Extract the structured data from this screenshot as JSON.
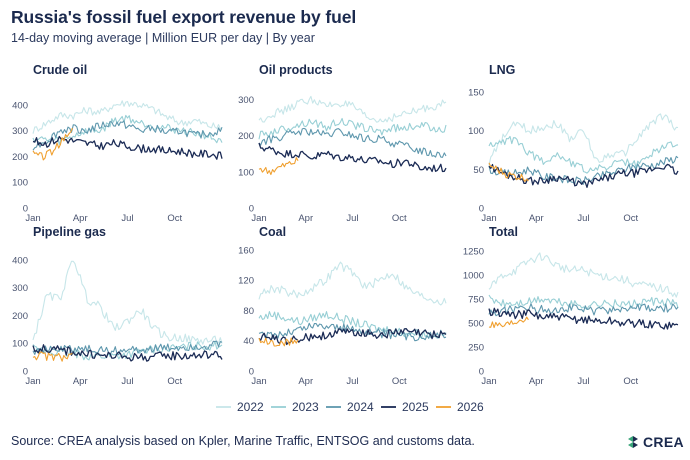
{
  "title": "Russia's fossil fuel export revenue by fuel",
  "subtitle": "14-day moving average | Million EUR per day | By year",
  "source": "Source: CREA analysis based on Kpler, Marine Traffic, ENTSOG and customs data.",
  "logo": {
    "text": "CREA",
    "icon": "crea-leaf-icon"
  },
  "colors": {
    "2022": "#c7e6e9",
    "2023": "#98cfd5",
    "2024": "#5e97ad",
    "2025": "#1b2b55",
    "2026": "#f0a030"
  },
  "chart_data": {
    "type": "line",
    "x_tick_labels": [
      "Jan",
      "Apr",
      "Jul",
      "Oct"
    ],
    "legend": {
      "placement": "bottom",
      "entries": [
        "2022",
        "2023",
        "2024",
        "2025",
        "2026"
      ]
    },
    "grid": false,
    "panels": [
      {
        "title": "Crude oil",
        "ylim": [
          0,
          450
        ],
        "y_ticks": [
          0,
          100,
          200,
          300,
          400
        ],
        "series": [
          {
            "name": "2022",
            "values": [
              300,
              330,
              360,
              360,
              380,
              370,
              400,
              410,
              400,
              380,
              350,
              330,
              340,
              320,
              310
            ]
          },
          {
            "name": "2023",
            "values": [
              270,
              265,
              260,
              280,
              300,
              300,
              340,
              350,
              330,
              320,
              310,
              300,
              290,
              280,
              250
            ]
          },
          {
            "name": "2024",
            "values": [
              240,
              260,
              300,
              310,
              300,
              320,
              330,
              320,
              300,
              310,
              290,
              300,
              280,
              290,
              300
            ]
          },
          {
            "name": "2025",
            "values": [
              260,
              250,
              270,
              260,
              250,
              240,
              250,
              240,
              230,
              230,
              220,
              220,
              210,
              210,
              200
            ]
          },
          {
            "name": "2026",
            "values": [
              210,
              200,
              220,
              260,
              300
            ]
          }
        ]
      },
      {
        "title": "Oil products",
        "ylim": [
          0,
          320
        ],
        "y_ticks": [
          0,
          100,
          200,
          300
        ],
        "series": [
          {
            "name": "2022",
            "values": [
              240,
              260,
              270,
              290,
              300,
              280,
              290,
              280,
              250,
              240,
              250,
              260,
              270,
              280,
              290
            ]
          },
          {
            "name": "2023",
            "values": [
              200,
              210,
              220,
              230,
              240,
              220,
              240,
              230,
              220,
              210,
              220,
              220,
              230,
              220,
              220
            ]
          },
          {
            "name": "2024",
            "values": [
              180,
              190,
              200,
              210,
              210,
              200,
              210,
              200,
              190,
              190,
              180,
              170,
              160,
              150,
              150
            ]
          },
          {
            "name": "2025",
            "values": [
              170,
              160,
              150,
              150,
              140,
              150,
              140,
              140,
              130,
              130,
              120,
              130,
              110,
              110,
              110
            ]
          },
          {
            "name": "2026",
            "values": [
              110,
              100,
              110,
              120,
              130
            ]
          }
        ]
      },
      {
        "title": "LNG",
        "ylim": [
          0,
          150
        ],
        "y_ticks": [
          0,
          50,
          100,
          150
        ],
        "series": [
          {
            "name": "2022",
            "values": [
              60,
              90,
              110,
              100,
              105,
              110,
              90,
              100,
              60,
              70,
              70,
              90,
              110,
              120,
              100
            ]
          },
          {
            "name": "2023",
            "values": [
              80,
              85,
              90,
              70,
              60,
              70,
              60,
              50,
              50,
              55,
              60,
              55,
              70,
              80,
              85
            ]
          },
          {
            "name": "2024",
            "values": [
              50,
              45,
              45,
              50,
              40,
              40,
              35,
              35,
              40,
              45,
              50,
              55,
              55,
              60,
              65
            ]
          },
          {
            "name": "2025",
            "values": [
              55,
              45,
              40,
              35,
              35,
              40,
              35,
              30,
              35,
              40,
              45,
              45,
              50,
              55,
              45
            ]
          },
          {
            "name": "2026",
            "values": [
              55,
              48,
              42,
              40,
              38
            ]
          }
        ]
      },
      {
        "title": "Pipeline gas",
        "ylim": [
          0,
          450
        ],
        "y_ticks": [
          0,
          100,
          200,
          300,
          400
        ],
        "series": [
          {
            "name": "2022",
            "values": [
              110,
              270,
              260,
              410,
              260,
              230,
              150,
              180,
              220,
              150,
              120,
              120,
              110,
              110,
              110
            ]
          },
          {
            "name": "2023",
            "values": [
              80,
              70,
              65,
              60,
              55,
              55,
              55,
              60,
              70,
              80,
              80,
              85,
              90,
              90,
              95
            ]
          },
          {
            "name": "2024",
            "values": [
              75,
              78,
              80,
              82,
              78,
              75,
              72,
              75,
              78,
              80,
              82,
              85,
              88,
              90,
              95
            ]
          },
          {
            "name": "2025",
            "values": [
              80,
              80,
              75,
              70,
              60,
              55,
              55,
              50,
              50,
              50,
              55,
              55,
              55,
              60,
              55
            ]
          },
          {
            "name": "2026",
            "values": [
              55,
              55,
              50,
              50,
              50
            ]
          }
        ]
      },
      {
        "title": "Coal",
        "ylim": [
          0,
          165
        ],
        "y_ticks": [
          0,
          40,
          80,
          120,
          160
        ],
        "series": [
          {
            "name": "2022",
            "values": [
              100,
              110,
              105,
              100,
              110,
              120,
              140,
              130,
              110,
              120,
              130,
              110,
              100,
              95,
              90
            ]
          },
          {
            "name": "2023",
            "values": [
              70,
              75,
              70,
              65,
              70,
              75,
              70,
              65,
              60,
              55,
              55,
              50,
              50,
              48,
              48
            ]
          },
          {
            "name": "2024",
            "values": [
              45,
              48,
              50,
              55,
              60,
              60,
              58,
              55,
              52,
              50,
              48,
              45,
              45,
              48,
              50
            ]
          },
          {
            "name": "2025",
            "values": [
              45,
              43,
              40,
              42,
              45,
              48,
              50,
              52,
              50,
              48,
              50,
              52,
              50,
              48,
              50
            ]
          },
          {
            "name": "2026",
            "values": [
              40,
              38,
              35,
              38,
              40
            ]
          }
        ]
      },
      {
        "title": "Total",
        "ylim": [
          0,
          1300
        ],
        "y_ticks": [
          0,
          250,
          500,
          750,
          1000,
          1250
        ],
        "series": [
          {
            "name": "2022",
            "values": [
              850,
              1000,
              1050,
              1150,
              1200,
              1100,
              1050,
              1050,
              1000,
              980,
              950,
              900,
              880,
              850,
              800
            ]
          },
          {
            "name": "2023",
            "values": [
              750,
              700,
              700,
              720,
              750,
              720,
              700,
              680,
              700,
              700,
              690,
              700,
              720,
              710,
              700
            ]
          },
          {
            "name": "2024",
            "values": [
              600,
              620,
              650,
              660,
              640,
              650,
              660,
              640,
              620,
              640,
              650,
              660,
              640,
              650,
              680
            ]
          },
          {
            "name": "2025",
            "values": [
              620,
              600,
              580,
              600,
              560,
              560,
              540,
              540,
              520,
              520,
              500,
              500,
              480,
              480,
              470
            ]
          },
          {
            "name": "2026",
            "values": [
              480,
              460,
              470,
              520,
              550
            ]
          }
        ]
      }
    ]
  }
}
